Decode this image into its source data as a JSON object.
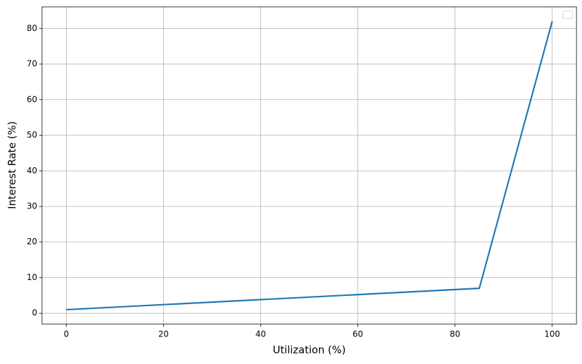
{
  "chart_data": {
    "type": "line",
    "x_label": "Utilization (%)",
    "y_label": "Interest Rate (%)",
    "x": [
      0,
      85,
      100
    ],
    "series": [
      {
        "color": "#1f77b4",
        "values": [
          1,
          7,
          82
        ]
      }
    ],
    "xlim": [
      -5,
      105
    ],
    "ylim": [
      -3.05,
      86.05
    ],
    "xticks": [
      0,
      20,
      40,
      60,
      80,
      100
    ],
    "yticks": [
      0,
      10,
      20,
      30,
      40,
      50,
      60,
      70,
      80
    ],
    "grid": true
  }
}
